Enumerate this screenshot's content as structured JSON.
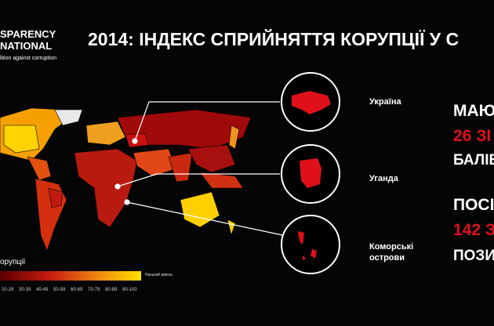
{
  "logo": {
    "line1": "SPARENCY",
    "line2": "NATIONAL",
    "tagline": "lition against corruption"
  },
  "title": "2014: ІНДЕКС СПРИЙНЯТТЯ КОРУПЦІЇ У С",
  "countries": [
    {
      "label": "Україна"
    },
    {
      "label": "Уганда"
    },
    {
      "label": "Коморські\nострови"
    }
  ],
  "facts": {
    "line1": "МАЮТ",
    "score": "26 ЗІ",
    "line2": "БАЛІВ",
    "line3": "ПОСІД",
    "rank": "142 З",
    "line4": "ПОЗИ"
  },
  "legend": {
    "title": "орупції",
    "ranges": [
      "20-29",
      "30-39",
      "40-49",
      "50-59",
      "60-69",
      "70-79",
      "80-89",
      "90-100"
    ],
    "end_label": "Низький рівень"
  }
}
